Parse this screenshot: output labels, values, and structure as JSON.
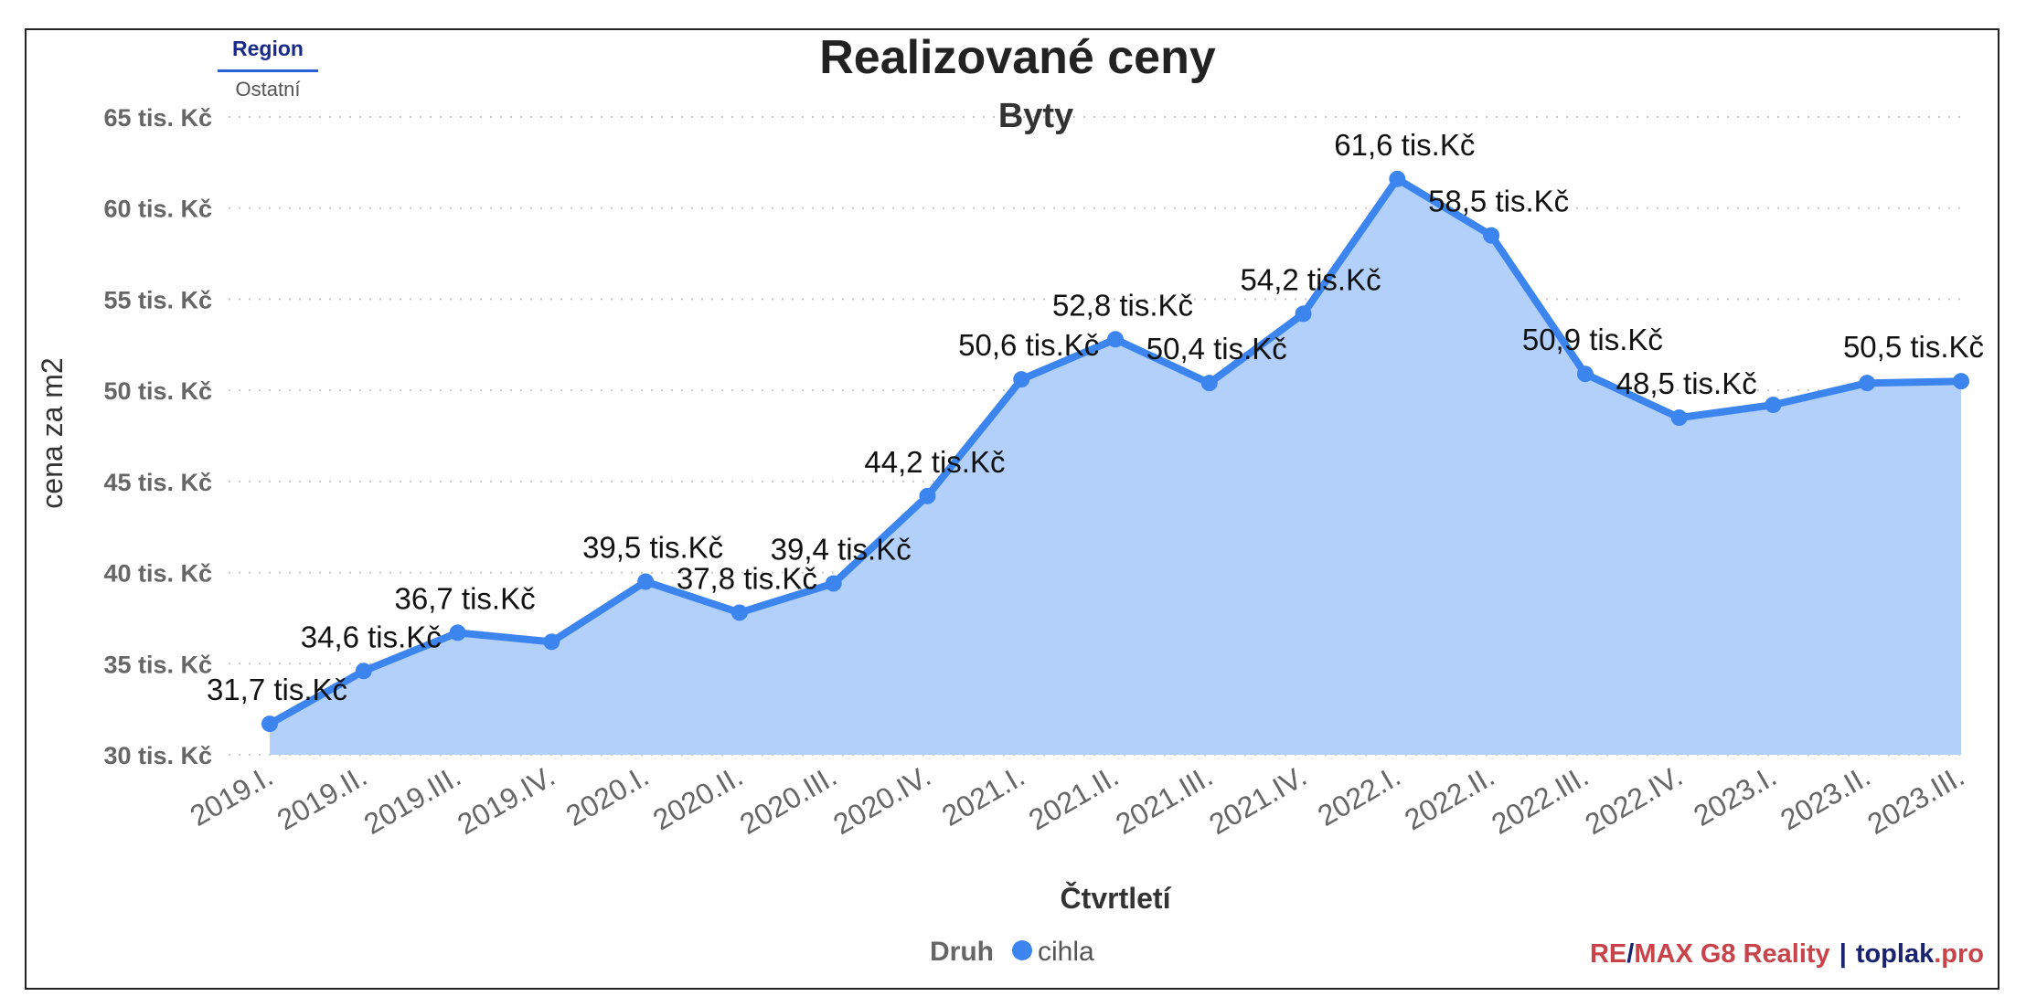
{
  "tabs": [
    {
      "label": "Region",
      "active": true
    },
    {
      "label": "Ostatní",
      "active": false
    }
  ],
  "brand": {
    "re": "RE",
    "slash": "/",
    "max": "MAX G8 Reality",
    "separator": "|",
    "toplak": "toplak",
    "pro": ".pro"
  },
  "chart_data": {
    "type": "area",
    "title": "Realizované ceny",
    "subtitle": "Byty",
    "xlabel": "Čtvrtletí",
    "ylabel": "cena za m2",
    "categories": [
      "2019.I.",
      "2019.II.",
      "2019.III.",
      "2019.IV.",
      "2020.I.",
      "2020.II.",
      "2020.III.",
      "2020.IV.",
      "2021.I.",
      "2021.II.",
      "2021.III.",
      "2021.IV.",
      "2022.I.",
      "2022.II.",
      "2022.III.",
      "2022.IV.",
      "2023.I.",
      "2023.II.",
      "2023.III."
    ],
    "series": [
      {
        "name": "cihla",
        "values": [
          31.7,
          34.6,
          36.7,
          36.2,
          39.5,
          37.8,
          39.4,
          44.2,
          50.6,
          52.8,
          50.4,
          54.2,
          61.6,
          58.5,
          50.9,
          48.5,
          49.2,
          50.4,
          50.5
        ],
        "labels": [
          "31,7 tis.Kč",
          "34,6 tis.Kč",
          "36,7 tis.Kč",
          "",
          "39,5 tis.Kč",
          "37,8 tis.Kč",
          "39,4 tis.Kč",
          "44,2 tis.Kč",
          "50,6 tis.Kč",
          "52,8 tis.Kč",
          "50,4 tis.Kč",
          "54,2 tis.Kč",
          "61,6 tis.Kč",
          "58,5 tis.Kč",
          "50,9 tis.Kč",
          "48,5 tis.Kč",
          "",
          "",
          "50,5 tis.Kč"
        ]
      }
    ],
    "yticks": [
      30,
      35,
      40,
      45,
      50,
      55,
      60,
      65
    ],
    "ytick_labels": [
      "30 tis. Kč",
      "35 tis. Kč",
      "40 tis. Kč",
      "45 tis. Kč",
      "50 tis. Kč",
      "55 tis. Kč",
      "60 tis. Kč",
      "65 tis. Kč"
    ],
    "ylim": [
      30,
      65
    ],
    "grid": true,
    "legend": {
      "title": "Druh",
      "placement": "bottom-center",
      "entries": [
        "cihla"
      ]
    },
    "colors": {
      "line": "#3d85ee",
      "area": "#b3d0fb"
    }
  }
}
